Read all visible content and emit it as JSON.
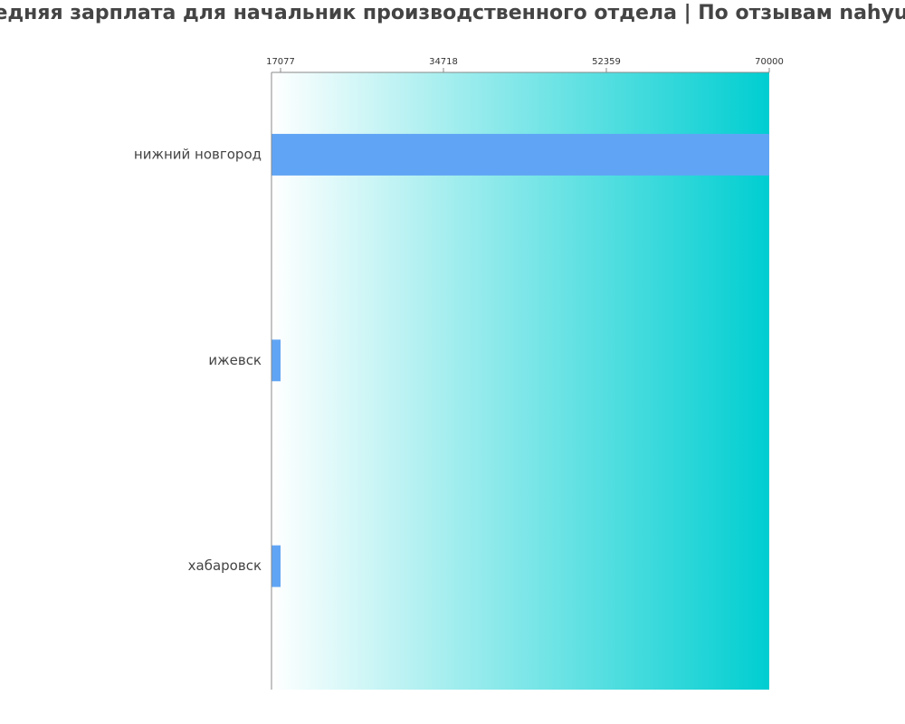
{
  "chart_data": {
    "type": "bar",
    "orientation": "horizontal",
    "title": "Средняя зарплата для начальник производственного отдела | По отзывам nahyu.ru",
    "categories": [
      "нижний новгород",
      "ижевск",
      "хабаровск"
    ],
    "values": [
      70000,
      17077,
      17077
    ],
    "color": "#60a5f5",
    "xlim": [
      16097,
      70000
    ],
    "xticks": [
      17077,
      34718,
      52359,
      70000
    ],
    "background_gradient": [
      "#ffffff",
      "#00ced1"
    ]
  }
}
